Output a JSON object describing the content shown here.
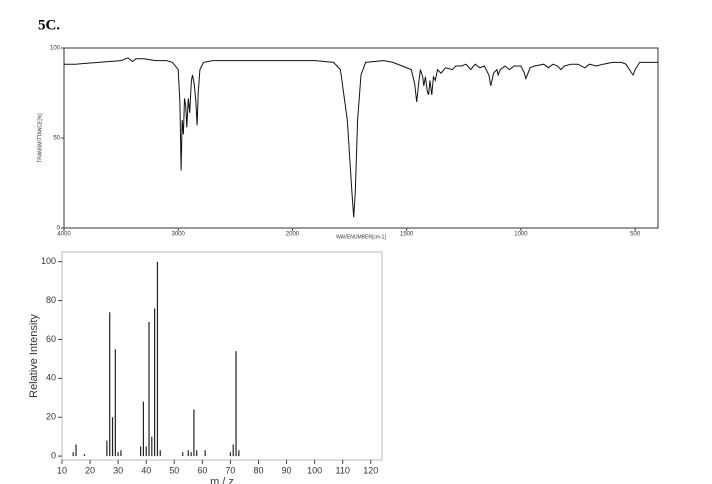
{
  "label": "5C.",
  "chart_data": [
    {
      "type": "line",
      "x_label": "WAVENUMBER[cm-1]",
      "y_label": "TRANSMITTANCE[%]",
      "xlim": [
        4000,
        400
      ],
      "xticks": [
        4000,
        3000,
        2000,
        1500,
        1000,
        500
      ],
      "ylim": [
        0,
        100
      ],
      "yticks": [
        0,
        50,
        100
      ],
      "color": "#111",
      "x": [
        4000,
        3900,
        3800,
        3700,
        3600,
        3500,
        3440,
        3400,
        3370,
        3300,
        3200,
        3100,
        3050,
        3000,
        2985,
        2975,
        2965,
        2955,
        2945,
        2935,
        2925,
        2912,
        2900,
        2885,
        2875,
        2860,
        2845,
        2835,
        2825,
        2810,
        2780,
        2700,
        2500,
        2300,
        2100,
        2000,
        1900,
        1820,
        1790,
        1760,
        1740,
        1732,
        1725,
        1715,
        1700,
        1680,
        1600,
        1560,
        1520,
        1480,
        1465,
        1456,
        1448,
        1440,
        1430,
        1425,
        1418,
        1410,
        1404,
        1398,
        1390,
        1383,
        1375,
        1365,
        1350,
        1330,
        1300,
        1285,
        1260,
        1240,
        1220,
        1200,
        1180,
        1160,
        1140,
        1132,
        1120,
        1105,
        1100,
        1090,
        1070,
        1050,
        1030,
        1000,
        985,
        978,
        960,
        940,
        900,
        880,
        860,
        840,
        825,
        810,
        780,
        750,
        720,
        700,
        670,
        640,
        600,
        560,
        540,
        520,
        509,
        500,
        480,
        450,
        420,
        400
      ],
      "values": [
        91,
        91,
        91.5,
        92,
        92.5,
        93,
        94.5,
        92.5,
        94,
        94,
        93,
        93,
        92,
        88,
        70,
        32,
        60,
        52,
        72,
        68,
        56,
        72,
        64,
        82,
        85,
        80,
        70,
        57,
        75,
        88,
        92,
        93,
        93,
        93,
        93,
        93,
        93,
        92,
        88,
        60,
        20,
        6,
        20,
        60,
        85,
        92,
        93,
        92,
        90,
        88,
        80,
        70,
        80,
        88,
        84,
        79,
        84,
        76,
        74,
        82,
        74,
        84,
        82,
        88,
        86,
        89,
        88,
        90,
        90,
        91,
        88,
        91,
        89,
        90,
        85,
        79,
        86,
        88,
        85,
        88,
        90,
        88,
        90,
        90,
        86,
        83,
        89,
        90,
        91,
        89,
        91,
        90,
        88,
        90,
        91,
        91,
        89,
        91,
        90,
        91,
        92,
        92,
        91,
        87,
        85,
        88,
        92,
        92,
        92,
        92
      ]
    },
    {
      "type": "stem",
      "x_label": "m / z",
      "y_label": "Relative Intensity",
      "xlim": [
        10,
        124
      ],
      "xticks": [
        10,
        20,
        30,
        40,
        50,
        60,
        70,
        80,
        90,
        100,
        110,
        120
      ],
      "ylim": [
        -2,
        105
      ],
      "yticks": [
        0,
        20,
        40,
        60,
        80,
        100
      ],
      "color": "#222",
      "x": [
        14,
        15,
        18,
        26,
        27,
        28,
        29,
        30,
        31,
        38,
        39,
        40,
        41,
        42,
        43,
        44,
        45,
        53,
        55,
        56,
        57,
        58,
        61,
        70,
        71,
        72,
        73
      ],
      "values": [
        2,
        6,
        1,
        8,
        74,
        20,
        55,
        2,
        3,
        5,
        28,
        5,
        69,
        10,
        76,
        100,
        3,
        2,
        3,
        2,
        24,
        3,
        3,
        2,
        6,
        54,
        3
      ]
    }
  ]
}
